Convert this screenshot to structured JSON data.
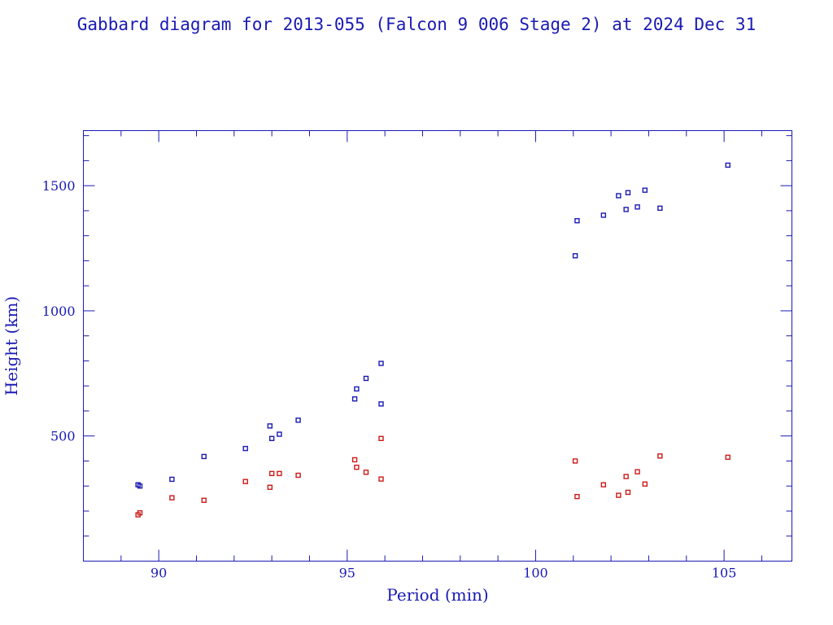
{
  "chart_data": {
    "type": "scatter",
    "title": "Gabbard diagram for 2013-055 (Falcon 9 006 Stage 2) at 2024 Dec 31",
    "xlabel": "Period (min)",
    "ylabel": "Height (km)",
    "xlim": [
      88,
      106.8
    ],
    "ylim": [
      0,
      1720
    ],
    "xticks": [
      90,
      95,
      100,
      105
    ],
    "yticks": [
      500,
      1000,
      1500
    ],
    "grid": false,
    "colors": {
      "axis": "#1a1ab4",
      "apogee": "#1a1ab4",
      "perigee": "#cc1a1a"
    },
    "series": [
      {
        "color": "#1a1ab4",
        "points": [
          [
            89.45,
            305
          ],
          [
            89.5,
            300
          ],
          [
            90.35,
            327
          ],
          [
            91.2,
            418
          ],
          [
            92.3,
            450
          ],
          [
            92.95,
            540
          ],
          [
            93.0,
            490
          ],
          [
            93.2,
            507
          ],
          [
            93.7,
            563
          ],
          [
            95.2,
            648
          ],
          [
            95.25,
            688
          ],
          [
            95.5,
            730
          ],
          [
            95.9,
            628
          ],
          [
            95.9,
            790
          ],
          [
            101.05,
            1220
          ],
          [
            101.1,
            1360
          ],
          [
            101.8,
            1382
          ],
          [
            102.2,
            1460
          ],
          [
            102.4,
            1405
          ],
          [
            102.45,
            1472
          ],
          [
            102.7,
            1415
          ],
          [
            102.9,
            1482
          ],
          [
            103.3,
            1410
          ],
          [
            105.1,
            1582
          ]
        ]
      },
      {
        "color": "#cc1a1a",
        "points": [
          [
            89.45,
            185
          ],
          [
            89.5,
            193
          ],
          [
            90.35,
            253
          ],
          [
            91.2,
            243
          ],
          [
            92.3,
            318
          ],
          [
            92.95,
            295
          ],
          [
            93.0,
            350
          ],
          [
            93.2,
            350
          ],
          [
            93.7,
            343
          ],
          [
            95.2,
            405
          ],
          [
            95.25,
            375
          ],
          [
            95.5,
            355
          ],
          [
            95.9,
            490
          ],
          [
            95.9,
            328
          ],
          [
            101.05,
            400
          ],
          [
            101.1,
            258
          ],
          [
            101.8,
            305
          ],
          [
            102.2,
            263
          ],
          [
            102.4,
            338
          ],
          [
            102.45,
            275
          ],
          [
            102.7,
            357
          ],
          [
            102.9,
            308
          ],
          [
            103.3,
            420
          ],
          [
            105.1,
            415
          ]
        ]
      }
    ]
  }
}
